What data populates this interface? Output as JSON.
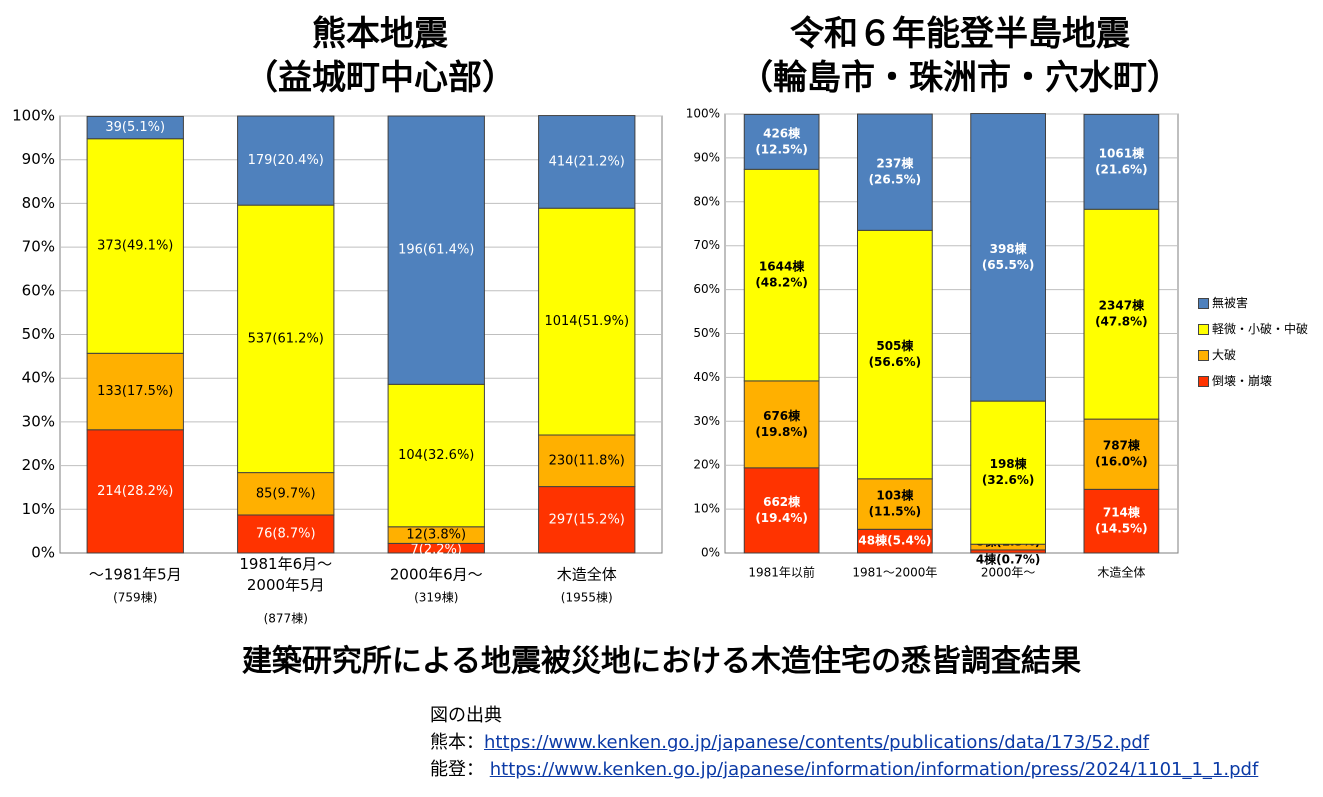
{
  "titles": {
    "kumamoto_line1": "熊本地震",
    "kumamoto_line2": "（益城町中心部）",
    "noto_line1": "令和６年能登半島地震",
    "noto_line2": "（輪島市・珠洲市・穴水町）"
  },
  "caption": "建築研究所による地震被災地における木造住宅の悉皆調査結果",
  "source": {
    "heading": "図の出典",
    "kumamoto_prefix": "熊本：",
    "kumamoto_url": "https://www.kenken.go.jp/japanese/contents/publications/data/173/52.pdf",
    "noto_prefix": "能登： ",
    "noto_url": "https://www.kenken.go.jp/japanese/information/information/press/2024/1101_1_1.pdf"
  },
  "colors": {
    "collapse": "#ff3300",
    "major": "#ffb000",
    "minor": "#ffff00",
    "none": "#4f81bd",
    "grid": "#bfbfbf"
  },
  "chart_data": [
    {
      "type": "bar",
      "stacked": true,
      "ylim": [
        0,
        100
      ],
      "yticks": [
        "0%",
        "10%",
        "20%",
        "30%",
        "40%",
        "50%",
        "60%",
        "70%",
        "80%",
        "90%",
        "100%"
      ],
      "categories": [
        "～1981年5月",
        "1981年6月～\n2000年5月",
        "2000年6月～",
        "木造全体"
      ],
      "category_counts": [
        "(759棟)",
        "(877棟)",
        "(319棟)",
        "(1955棟)"
      ],
      "series": [
        {
          "key": "collapse",
          "values": [
            28.2,
            8.7,
            2.2,
            15.2
          ],
          "labels": [
            "214(28.2%)",
            "76(8.7%)",
            "7(2.2%)",
            "297(15.2%)"
          ]
        },
        {
          "key": "major",
          "values": [
            17.5,
            9.7,
            3.8,
            11.8
          ],
          "labels": [
            "133(17.5%)",
            "85(9.7%)",
            "12(3.8%)",
            "230(11.8%)"
          ]
        },
        {
          "key": "minor",
          "values": [
            49.1,
            61.2,
            32.6,
            51.9
          ],
          "labels": [
            "373(49.1%)",
            "537(61.2%)",
            "104(32.6%)",
            "1014(51.9%)"
          ]
        },
        {
          "key": "none",
          "values": [
            5.1,
            20.4,
            61.4,
            21.2
          ],
          "labels": [
            "39(5.1%)",
            "179(20.4%)",
            "196(61.4%)",
            "414(21.2%)"
          ]
        }
      ]
    },
    {
      "type": "bar",
      "stacked": true,
      "ylim": [
        0,
        100
      ],
      "yticks": [
        "0%",
        "10%",
        "20%",
        "30%",
        "40%",
        "50%",
        "60%",
        "70%",
        "80%",
        "90%",
        "100%"
      ],
      "categories": [
        "1981年以前",
        "1981～2000年",
        "2000年～",
        "木造全体"
      ],
      "legend": [
        {
          "key": "none",
          "label": "無被害"
        },
        {
          "key": "minor",
          "label": "軽微・小破・中破"
        },
        {
          "key": "major",
          "label": "大破"
        },
        {
          "key": "collapse",
          "label": "倒壊・崩壊"
        }
      ],
      "series": [
        {
          "key": "collapse",
          "values": [
            19.4,
            5.4,
            0.7,
            14.5
          ],
          "labels": [
            "662棟\n(19.4%)",
            "48棟(5.4%)",
            "4棟(0.7%)",
            "714棟\n(14.5%)"
          ]
        },
        {
          "key": "major",
          "values": [
            19.8,
            11.5,
            1.3,
            16.0
          ],
          "labels": [
            "676棟\n(19.8%)",
            "103棟\n(11.5%)",
            "8棟(1.3%)",
            "787棟\n(16.0%)"
          ]
        },
        {
          "key": "minor",
          "values": [
            48.2,
            56.6,
            32.6,
            47.8
          ],
          "labels": [
            "1644棟\n(48.2%)",
            "505棟\n(56.6%)",
            "198棟\n(32.6%)",
            "2347棟\n(47.8%)"
          ]
        },
        {
          "key": "none",
          "values": [
            12.5,
            26.5,
            65.5,
            21.6
          ],
          "labels": [
            "426棟\n(12.5%)",
            "237棟\n(26.5%)",
            "398棟\n(65.5%)",
            "1061棟\n(21.6%)"
          ]
        }
      ]
    }
  ]
}
